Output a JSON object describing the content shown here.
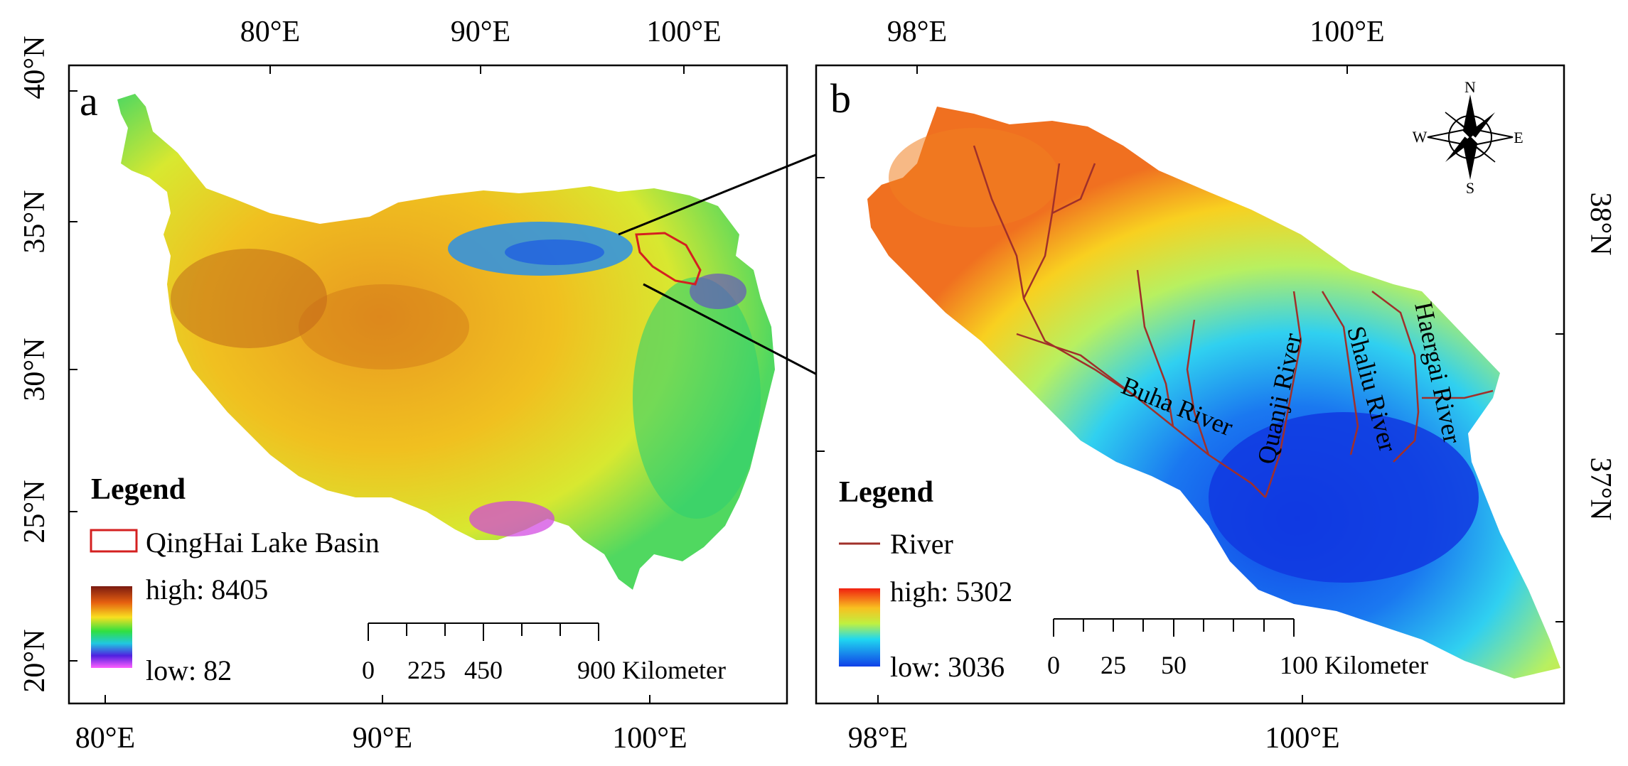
{
  "panel_a": {
    "label": "a",
    "top_lon_ticks": [
      "80°E",
      "90°E",
      "100°E"
    ],
    "bottom_lon_ticks": [
      "80°E",
      "90°E",
      "100°E"
    ],
    "left_lat_ticks": [
      "40°N",
      "35°N",
      "30°N",
      "25°N",
      "20°N"
    ],
    "legend": {
      "title": "Legend",
      "basin_label": "QingHai Lake Basin",
      "high": "high: 8405",
      "low": "low: 82"
    },
    "scale": {
      "labels": [
        "0",
        "225",
        "450",
        "900 Kilometer"
      ]
    }
  },
  "panel_b": {
    "label": "b",
    "top_lon_ticks": [
      "98°E",
      "100°E"
    ],
    "bottom_lon_ticks": [
      "98°E",
      "100°E"
    ],
    "right_lat_ticks": [
      "38°N",
      "37°N"
    ],
    "rivers": [
      "Buha River",
      "Quanji River",
      "Shaliu River",
      "Haergai River"
    ],
    "compass": {
      "n": "N",
      "s": "S",
      "e": "E",
      "w": "W"
    },
    "legend": {
      "title": "Legend",
      "river_label": "River",
      "high": "high: 5302",
      "low": "low: 3036"
    },
    "scale": {
      "labels": [
        "0",
        "25",
        "50",
        "100 Kilometer"
      ]
    }
  },
  "colors": {
    "frame": "#000000",
    "basin_outline": "#d42020",
    "river": "#a0302a"
  }
}
